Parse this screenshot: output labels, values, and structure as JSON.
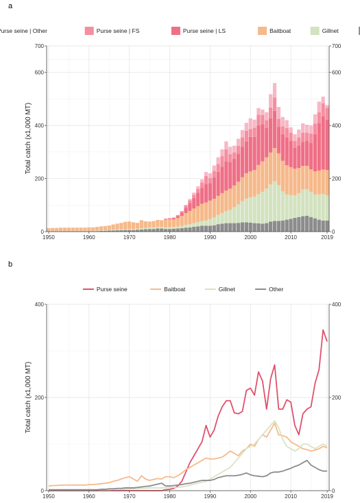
{
  "panel_a": {
    "letter": "a",
    "chart_data": {
      "type": "bar",
      "stacked": true,
      "ylabel": "Total catch (x1,000 MT)",
      "xlabel": "",
      "ylim": [
        0,
        700
      ],
      "yticks": [
        0,
        200,
        400,
        600,
        700
      ],
      "xticks": [
        1950,
        1960,
        1970,
        1980,
        1990,
        2000,
        2010,
        2019
      ],
      "grid": true,
      "legend_position": "top",
      "x": [
        1950,
        1951,
        1952,
        1953,
        1954,
        1955,
        1956,
        1957,
        1958,
        1959,
        1960,
        1961,
        1962,
        1963,
        1964,
        1965,
        1966,
        1967,
        1968,
        1969,
        1970,
        1971,
        1972,
        1973,
        1974,
        1975,
        1976,
        1977,
        1978,
        1979,
        1980,
        1981,
        1982,
        1983,
        1984,
        1985,
        1986,
        1987,
        1988,
        1989,
        1990,
        1991,
        1992,
        1993,
        1994,
        1995,
        1996,
        1997,
        1998,
        1999,
        2000,
        2001,
        2002,
        2003,
        2004,
        2005,
        2006,
        2007,
        2008,
        2009,
        2010,
        2011,
        2012,
        2013,
        2014,
        2015,
        2016,
        2017,
        2018,
        2019
      ],
      "series": [
        {
          "name": "Other",
          "color": "#8c8c8c",
          "values": [
            2,
            2,
            2,
            2,
            2,
            2,
            2,
            2,
            2,
            2,
            2,
            2,
            2,
            3,
            3,
            4,
            4,
            5,
            5,
            6,
            6,
            6,
            7,
            8,
            9,
            10,
            10,
            12,
            12,
            10,
            10,
            11,
            12,
            13,
            15,
            16,
            18,
            20,
            22,
            22,
            22,
            24,
            28,
            30,
            32,
            32,
            32,
            33,
            35,
            35,
            34,
            32,
            31,
            30,
            32,
            38,
            40,
            40,
            42,
            45,
            48,
            52,
            55,
            58,
            60,
            55,
            50,
            45,
            42,
            42
          ]
        },
        {
          "name": "Gillnet",
          "color": "#d3e2bf",
          "values": [
            1,
            1,
            1,
            1,
            1,
            1,
            1,
            1,
            1,
            1,
            1,
            1,
            2,
            2,
            2,
            2,
            3,
            3,
            3,
            3,
            4,
            4,
            4,
            5,
            5,
            6,
            6,
            6,
            6,
            6,
            7,
            7,
            7,
            8,
            10,
            12,
            14,
            16,
            18,
            20,
            25,
            30,
            35,
            40,
            45,
            50,
            60,
            70,
            80,
            90,
            95,
            100,
            110,
            120,
            130,
            140,
            150,
            135,
            110,
            95,
            90,
            85,
            90,
            100,
            100,
            95,
            90,
            95,
            100,
            95
          ]
        },
        {
          "name": "Baitboat",
          "color": "#f6b98a",
          "values": [
            10,
            11,
            11,
            12,
            12,
            12,
            12,
            12,
            12,
            12,
            13,
            13,
            14,
            15,
            16,
            17,
            20,
            22,
            25,
            28,
            28,
            25,
            22,
            30,
            25,
            22,
            24,
            26,
            25,
            30,
            30,
            28,
            32,
            38,
            45,
            50,
            55,
            60,
            65,
            68,
            70,
            70,
            72,
            75,
            78,
            80,
            82,
            85,
            90,
            95,
            98,
            100,
            110,
            115,
            118,
            120,
            125,
            120,
            115,
            110,
            105,
            100,
            95,
            90,
            88,
            85,
            87,
            90,
            92,
            95
          ]
        },
        {
          "name": "Purse seine | LS",
          "color": "#ef6f86",
          "values": [
            0,
            0,
            0,
            0,
            0,
            0,
            0,
            0,
            0,
            0,
            0,
            0,
            0,
            0,
            0,
            0,
            0,
            0,
            0,
            0,
            0,
            0,
            0,
            0,
            0,
            0,
            0,
            0,
            0,
            2,
            3,
            5,
            8,
            12,
            20,
            30,
            40,
            50,
            60,
            70,
            65,
            80,
            90,
            100,
            110,
            100,
            100,
            105,
            115,
            120,
            130,
            125,
            150,
            140,
            110,
            130,
            140,
            100,
            100,
            105,
            100,
            80,
            85,
            90,
            95,
            100,
            140,
            180,
            200,
            190
          ]
        },
        {
          "name": "Purse seine | FS",
          "color": "#f58e9f",
          "values": [
            0,
            0,
            0,
            0,
            0,
            0,
            0,
            0,
            0,
            0,
            0,
            0,
            0,
            0,
            0,
            0,
            0,
            0,
            0,
            0,
            0,
            0,
            0,
            0,
            0,
            0,
            0,
            0,
            0,
            1,
            1,
            2,
            3,
            5,
            8,
            10,
            12,
            15,
            20,
            30,
            20,
            25,
            30,
            40,
            45,
            30,
            25,
            30,
            35,
            40,
            30,
            35,
            40,
            35,
            30,
            40,
            50,
            30,
            30,
            35,
            30,
            25,
            30,
            35,
            30,
            35,
            40,
            40,
            50,
            45
          ]
        },
        {
          "name": "Purse seine | Other",
          "color": "#f7b8c6",
          "values": [
            0,
            0,
            0,
            0,
            0,
            0,
            0,
            0,
            0,
            0,
            0,
            0,
            0,
            0,
            0,
            0,
            0,
            0,
            0,
            0,
            0,
            0,
            0,
            0,
            0,
            0,
            0,
            0,
            0,
            0,
            0,
            0,
            1,
            2,
            3,
            5,
            8,
            10,
            12,
            15,
            18,
            20,
            25,
            25,
            30,
            28,
            25,
            27,
            28,
            30,
            40,
            30,
            25,
            20,
            30,
            50,
            55,
            45,
            35,
            30,
            20,
            25,
            30,
            35,
            30,
            30,
            35,
            40,
            25,
            10
          ]
        }
      ]
    }
  },
  "panel_b": {
    "letter": "b",
    "chart_data": {
      "type": "line",
      "ylabel": "Total catch (x1,000 MT)",
      "xlabel": "",
      "ylim": [
        0,
        400
      ],
      "yticks": [
        0,
        200,
        400
      ],
      "xticks": [
        1950,
        1960,
        1970,
        1980,
        1990,
        2000,
        2010,
        2019
      ],
      "grid": true,
      "legend_position": "top",
      "x": [
        1950,
        1951,
        1952,
        1953,
        1954,
        1955,
        1956,
        1957,
        1958,
        1959,
        1960,
        1961,
        1962,
        1963,
        1964,
        1965,
        1966,
        1967,
        1968,
        1969,
        1970,
        1971,
        1972,
        1973,
        1974,
        1975,
        1976,
        1977,
        1978,
        1979,
        1980,
        1981,
        1982,
        1983,
        1984,
        1985,
        1986,
        1987,
        1988,
        1989,
        1990,
        1991,
        1992,
        1993,
        1994,
        1995,
        1996,
        1997,
        1998,
        1999,
        2000,
        2001,
        2002,
        2003,
        2004,
        2005,
        2006,
        2007,
        2008,
        2009,
        2010,
        2011,
        2012,
        2013,
        2014,
        2015,
        2016,
        2017,
        2018,
        2019
      ],
      "series": [
        {
          "name": "Purse seine",
          "color": "#e0506b",
          "values": [
            0,
            0,
            0,
            0,
            0,
            0,
            0,
            0,
            0,
            0,
            0,
            0,
            0,
            0,
            0,
            0,
            0,
            0,
            0,
            0,
            0,
            0,
            0,
            0,
            0,
            0,
            0,
            0,
            0,
            2,
            3,
            5,
            10,
            20,
            40,
            60,
            75,
            90,
            105,
            140,
            115,
            130,
            160,
            180,
            193,
            193,
            167,
            165,
            170,
            215,
            220,
            205,
            255,
            235,
            175,
            240,
            270,
            175,
            175,
            195,
            190,
            140,
            120,
            165,
            175,
            180,
            230,
            260,
            345,
            320
          ]
        },
        {
          "name": "Baitboat",
          "color": "#f6b98a",
          "values": [
            10,
            11,
            11,
            12,
            12,
            12,
            12,
            12,
            12,
            12,
            13,
            13,
            14,
            15,
            16,
            17,
            20,
            22,
            25,
            28,
            30,
            25,
            20,
            32,
            25,
            22,
            24,
            26,
            25,
            30,
            30,
            28,
            32,
            38,
            45,
            50,
            55,
            60,
            65,
            70,
            68,
            68,
            70,
            72,
            78,
            85,
            80,
            75,
            85,
            90,
            100,
            95,
            110,
            120,
            115,
            130,
            145,
            120,
            118,
            115,
            105,
            100,
            95,
            90,
            88,
            85,
            87,
            90,
            95,
            92
          ]
        },
        {
          "name": "Gillnet",
          "color": "#d8e4c4",
          "values": [
            1,
            1,
            1,
            1,
            1,
            1,
            1,
            1,
            1,
            1,
            1,
            1,
            2,
            2,
            2,
            2,
            3,
            3,
            3,
            3,
            4,
            4,
            4,
            5,
            5,
            6,
            6,
            6,
            6,
            6,
            7,
            7,
            7,
            8,
            10,
            12,
            14,
            16,
            18,
            20,
            25,
            30,
            35,
            40,
            45,
            50,
            60,
            70,
            80,
            90,
            95,
            100,
            110,
            120,
            130,
            140,
            150,
            135,
            110,
            95,
            90,
            85,
            90,
            100,
            100,
            95,
            90,
            95,
            100,
            95
          ]
        },
        {
          "name": "Other",
          "color": "#8c8c8c",
          "values": [
            2,
            2,
            2,
            2,
            2,
            2,
            2,
            2,
            2,
            2,
            2,
            2,
            2,
            3,
            3,
            4,
            4,
            5,
            5,
            6,
            6,
            6,
            7,
            8,
            9,
            10,
            12,
            14,
            16,
            10,
            10,
            11,
            12,
            13,
            15,
            16,
            18,
            20,
            22,
            22,
            22,
            24,
            28,
            30,
            32,
            32,
            32,
            33,
            35,
            38,
            34,
            32,
            31,
            30,
            32,
            38,
            40,
            40,
            42,
            45,
            48,
            52,
            55,
            60,
            65,
            55,
            50,
            45,
            42,
            42
          ]
        }
      ]
    }
  }
}
